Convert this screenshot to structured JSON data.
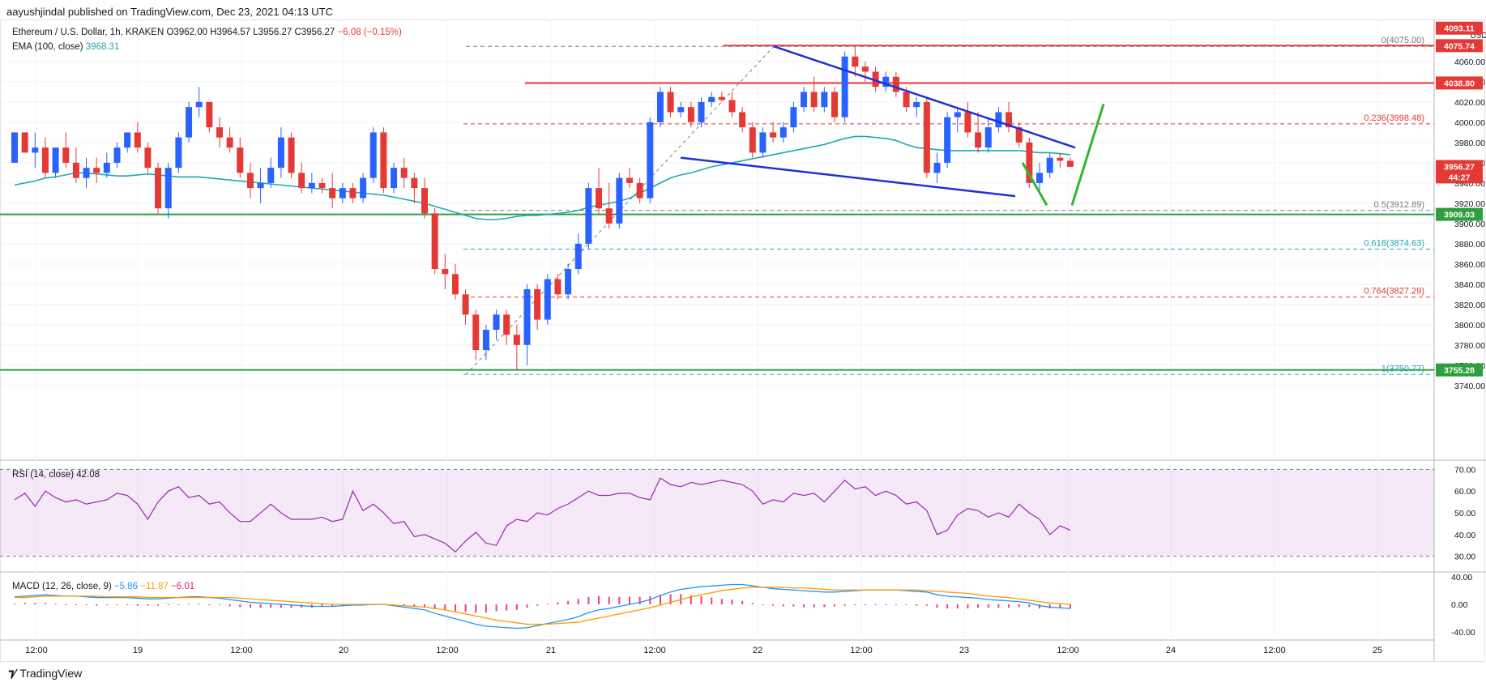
{
  "publisher_line": "aayushjindal published on TradingView.com, Dec 23, 2021 04:13 UTC",
  "symbol": {
    "name": "Ethereum / U.S. Dollar, 1h, KRAKEN",
    "open": "O3962.00",
    "high": "H3964.57",
    "low": "L3956.27",
    "close": "C3956.27",
    "change": "−6.08 (−0.15%)"
  },
  "ema_label": "EMA (100, close)",
  "ema_value": "3968.31",
  "rsi_label": "RSI (14, close)",
  "rsi_value": "42.08",
  "macd_label": "MACD (12, 26, close, 9)",
  "macd_values": [
    "−5.86",
    "−11.87",
    "−6.01"
  ],
  "currency": "USD",
  "footer_brand": "TradingView",
  "colors": {
    "up": "#2962ff",
    "down": "#e53935",
    "ema": "#1fa8b3",
    "rsi": "#9c27b0",
    "macd": "#2196f3",
    "signal": "#ff9800",
    "hist": "#e91e63",
    "support": "#2e9e3e",
    "resistance": "#e53935",
    "trend": "#2130d6",
    "arrow": "#2eb82e"
  },
  "chart_data": {
    "type": "candlestick",
    "price_axis": {
      "min": 3735,
      "max": 4100,
      "ticks": [
        4060,
        4040,
        4020,
        4000,
        3980,
        3960,
        3940,
        3920,
        3900,
        3880,
        3860,
        3840,
        3820,
        3800,
        3780,
        3760,
        3740
      ]
    },
    "time_axis_labels": [
      "12:00",
      "19",
      "12:00",
      "20",
      "12:00",
      "21",
      "12:00",
      "22",
      "12:00",
      "23",
      "12:00",
      "24",
      "12:00",
      "25"
    ],
    "price_tags": [
      {
        "value": "4093.11",
        "color": "#e53935",
        "price": 4093
      },
      {
        "value": "4075.74",
        "color": "#e53935",
        "price": 4075.7
      },
      {
        "value": "4038.80",
        "color": "#e53935",
        "price": 4038.8
      },
      {
        "value": "3956.27",
        "color": "#e53935",
        "price": 3956.3
      },
      {
        "value": "44:27",
        "color": "#e53935",
        "price": 3946
      },
      {
        "value": "3909.03",
        "color": "#2e9e3e",
        "price": 3909
      },
      {
        "value": "3755.28",
        "color": "#2e9e3e",
        "price": 3755.3
      }
    ],
    "fib_levels": [
      {
        "label": "0(4075.00)",
        "price": 4075.0,
        "color": "#787b86",
        "dash": true
      },
      {
        "label": "0.236(3998.48)",
        "price": 3998.48,
        "color": "#e53935",
        "dash": true
      },
      {
        "label": "0.5(3912.89)",
        "price": 3912.89,
        "color": "#787b86",
        "dash": true
      },
      {
        "label": "0.618(3874.63)",
        "price": 3874.63,
        "color": "#1fa8b3",
        "dash": true
      },
      {
        "label": "0.764(3827.29)",
        "price": 3827.29,
        "color": "#e53935",
        "dash": true
      },
      {
        "label": "1(3750.77)",
        "price": 3750.77,
        "color": "#1fa8b3",
        "dash": true
      }
    ],
    "horizontal_lines": [
      {
        "name": "resistance-top",
        "price": 4075.74,
        "color": "#e53935"
      },
      {
        "name": "resistance-4038",
        "price": 4038.8,
        "color": "#e53935"
      },
      {
        "name": "support-3909",
        "price": 3909.03,
        "color": "#2e9e3e"
      },
      {
        "name": "support-3755",
        "price": 3755.28,
        "color": "#2e9e3e"
      }
    ],
    "candles": [
      [
        3960,
        3990,
        3960,
        3990
      ],
      [
        3990,
        3990,
        3970,
        3970
      ],
      [
        3970,
        3990,
        3955,
        3975
      ],
      [
        3975,
        3985,
        3945,
        3950
      ],
      [
        3950,
        3975,
        3945,
        3975
      ],
      [
        3975,
        3990,
        3955,
        3960
      ],
      [
        3960,
        3975,
        3940,
        3945
      ],
      [
        3945,
        3965,
        3935,
        3955
      ],
      [
        3955,
        3965,
        3940,
        3950
      ],
      [
        3950,
        3970,
        3945,
        3960
      ],
      [
        3960,
        3980,
        3955,
        3975
      ],
      [
        3975,
        3990,
        3970,
        3990
      ],
      [
        3990,
        4000,
        3970,
        3975
      ],
      [
        3975,
        3980,
        3950,
        3955
      ],
      [
        3955,
        3960,
        3910,
        3915
      ],
      [
        3915,
        3960,
        3905,
        3955
      ],
      [
        3955,
        3990,
        3950,
        3985
      ],
      [
        3985,
        4020,
        3980,
        4015
      ],
      [
        4015,
        4035,
        4005,
        4020
      ],
      [
        4020,
        4020,
        3990,
        3995
      ],
      [
        3995,
        4005,
        3975,
        3985
      ],
      [
        3985,
        3995,
        3970,
        3975
      ],
      [
        3975,
        3985,
        3945,
        3950
      ],
      [
        3950,
        3960,
        3925,
        3935
      ],
      [
        3935,
        3955,
        3920,
        3940
      ],
      [
        3940,
        3965,
        3935,
        3955
      ],
      [
        3955,
        3995,
        3945,
        3985
      ],
      [
        3985,
        3990,
        3945,
        3950
      ],
      [
        3950,
        3960,
        3930,
        3935
      ],
      [
        3935,
        3950,
        3930,
        3940
      ],
      [
        3940,
        3945,
        3930,
        3935
      ],
      [
        3935,
        3950,
        3915,
        3925
      ],
      [
        3925,
        3940,
        3920,
        3935
      ],
      [
        3935,
        3940,
        3920,
        3925
      ],
      [
        3925,
        3950,
        3920,
        3945
      ],
      [
        3945,
        3995,
        3940,
        3990
      ],
      [
        3990,
        3995,
        3930,
        3935
      ],
      [
        3935,
        3960,
        3930,
        3955
      ],
      [
        3955,
        3965,
        3935,
        3945
      ],
      [
        3945,
        3950,
        3920,
        3935
      ],
      [
        3935,
        3945,
        3905,
        3910
      ],
      [
        3910,
        3915,
        3850,
        3855
      ],
      [
        3855,
        3870,
        3835,
        3850
      ],
      [
        3850,
        3860,
        3825,
        3830
      ],
      [
        3830,
        3835,
        3800,
        3810
      ],
      [
        3810,
        3815,
        3765,
        3775
      ],
      [
        3775,
        3800,
        3765,
        3795
      ],
      [
        3795,
        3815,
        3785,
        3810
      ],
      [
        3810,
        3815,
        3780,
        3790
      ],
      [
        3790,
        3800,
        3755,
        3780
      ],
      [
        3780,
        3840,
        3760,
        3835
      ],
      [
        3835,
        3840,
        3795,
        3805
      ],
      [
        3805,
        3850,
        3800,
        3845
      ],
      [
        3845,
        3850,
        3825,
        3830
      ],
      [
        3830,
        3860,
        3825,
        3855
      ],
      [
        3855,
        3890,
        3850,
        3880
      ],
      [
        3880,
        3940,
        3875,
        3935
      ],
      [
        3935,
        3955,
        3910,
        3915
      ],
      [
        3915,
        3940,
        3895,
        3900
      ],
      [
        3900,
        3950,
        3895,
        3945
      ],
      [
        3945,
        3955,
        3935,
        3940
      ],
      [
        3940,
        3945,
        3920,
        3925
      ],
      [
        3925,
        4005,
        3920,
        4000
      ],
      [
        4000,
        4035,
        3995,
        4030
      ],
      [
        4030,
        4035,
        4005,
        4010
      ],
      [
        4010,
        4020,
        4005,
        4015
      ],
      [
        4015,
        4020,
        3995,
        4000
      ],
      [
        4000,
        4025,
        3995,
        4020
      ],
      [
        4020,
        4030,
        4015,
        4025
      ],
      [
        4025,
        4030,
        4020,
        4022
      ],
      [
        4022,
        4030,
        4005,
        4010
      ],
      [
        4010,
        4015,
        3990,
        3995
      ],
      [
        3995,
        4000,
        3965,
        3970
      ],
      [
        3970,
        3995,
        3965,
        3990
      ],
      [
        3990,
        4000,
        3980,
        3985
      ],
      [
        3985,
        4000,
        3980,
        3995
      ],
      [
        3995,
        4020,
        3990,
        4015
      ],
      [
        4015,
        4035,
        4010,
        4030
      ],
      [
        4030,
        4045,
        4010,
        4015
      ],
      [
        4015,
        4035,
        4010,
        4030
      ],
      [
        4030,
        4035,
        4000,
        4005
      ],
      [
        4005,
        4070,
        4000,
        4065
      ],
      [
        4065,
        4075,
        4045,
        4055
      ],
      [
        4055,
        4060,
        4040,
        4050
      ],
      [
        4050,
        4055,
        4030,
        4035
      ],
      [
        4035,
        4050,
        4030,
        4045
      ],
      [
        4045,
        4050,
        4025,
        4030
      ],
      [
        4030,
        4035,
        4010,
        4015
      ],
      [
        4015,
        4025,
        4005,
        4020
      ],
      [
        4020,
        4025,
        3945,
        3950
      ],
      [
        3950,
        3970,
        3940,
        3960
      ],
      [
        3960,
        4010,
        3955,
        4005
      ],
      [
        4005,
        4015,
        3990,
        4010
      ],
      [
        4010,
        4020,
        3985,
        3990
      ],
      [
        3990,
        4010,
        3970,
        3975
      ],
      [
        3975,
        4005,
        3970,
        3995
      ],
      [
        3995,
        4015,
        3990,
        4010
      ],
      [
        4010,
        4020,
        3990,
        3995
      ],
      [
        3995,
        4000,
        3975,
        3980
      ],
      [
        3980,
        3985,
        3935,
        3940
      ],
      [
        3940,
        3960,
        3930,
        3950
      ],
      [
        3950,
        3970,
        3945,
        3965
      ],
      [
        3965,
        3970,
        3955,
        3962
      ],
      [
        3962,
        3965,
        3956,
        3956
      ]
    ],
    "ema100": [
      3938,
      3940,
      3942,
      3945,
      3946,
      3948,
      3950,
      3950,
      3949,
      3948,
      3947,
      3947,
      3948,
      3949,
      3948,
      3947,
      3946,
      3946,
      3946,
      3945,
      3944,
      3943,
      3942,
      3941,
      3940,
      3939,
      3938,
      3937,
      3936,
      3935,
      3934,
      3933,
      3932,
      3931,
      3930,
      3929,
      3928,
      3926,
      3924,
      3922,
      3920,
      3917,
      3914,
      3911,
      3908,
      3905,
      3904,
      3904,
      3905,
      3907,
      3908,
      3908,
      3909,
      3910,
      3911,
      3913,
      3916,
      3918,
      3920,
      3922,
      3925,
      3930,
      3935,
      3940,
      3945,
      3948,
      3950,
      3953,
      3956,
      3958,
      3960,
      3962,
      3964,
      3966,
      3968,
      3970,
      3972,
      3974,
      3976,
      3978,
      3981,
      3984,
      3986,
      3986,
      3985,
      3984,
      3982,
      3978,
      3975,
      3974,
      3973,
      3972,
      3972,
      3972,
      3972,
      3972,
      3972,
      3972,
      3972,
      3971,
      3970,
      3970,
      3969,
      3968
    ],
    "rsi": {
      "min": 25,
      "max": 72,
      "levels": [
        70,
        60,
        50,
        40,
        30
      ],
      "band": [
        30,
        70
      ],
      "values": [
        56,
        59,
        53,
        60,
        57,
        55,
        56,
        54,
        55,
        56,
        59,
        58,
        54,
        47,
        55,
        60,
        62,
        57,
        58,
        54,
        55,
        50,
        46,
        46,
        50,
        54,
        50,
        47,
        47,
        47,
        48,
        46,
        47,
        60,
        51,
        54,
        50,
        45,
        46,
        39,
        40,
        38,
        36,
        32,
        37,
        41,
        36,
        35,
        44,
        47,
        46,
        50,
        49,
        52,
        54,
        57,
        60,
        58,
        58,
        59,
        59,
        57,
        56,
        66,
        63,
        62,
        64,
        63,
        64,
        65,
        64,
        63,
        60,
        54,
        56,
        55,
        59,
        58,
        59,
        55,
        60,
        65,
        61,
        62,
        58,
        60,
        58,
        54,
        55,
        51,
        40,
        42,
        49,
        52,
        51,
        48,
        50,
        48,
        54,
        50,
        47,
        40,
        44,
        42
      ]
    },
    "macd": {
      "min": -45,
      "max": 45,
      "levels": [
        40.0,
        0.0,
        -40.0
      ],
      "macd": [
        11,
        12,
        13,
        14,
        13,
        12,
        12,
        11,
        10,
        10,
        10,
        10,
        9,
        8,
        8,
        9,
        10,
        11,
        11,
        10,
        9,
        7,
        5,
        3,
        2,
        1,
        0,
        -1,
        -2,
        -3,
        -3,
        -3,
        -2,
        -1,
        -1,
        0,
        0,
        -2,
        -4,
        -6,
        -8,
        -13,
        -17,
        -21,
        -25,
        -29,
        -32,
        -33,
        -34,
        -35,
        -34,
        -31,
        -28,
        -25,
        -22,
        -18,
        -12,
        -8,
        -6,
        -3,
        0,
        3,
        7,
        13,
        18,
        22,
        24,
        26,
        27,
        28,
        29,
        29,
        27,
        25,
        23,
        22,
        21,
        20,
        19,
        18,
        18,
        19,
        20,
        21,
        21,
        21,
        21,
        20,
        19,
        18,
        14,
        12,
        11,
        10,
        9,
        7,
        6,
        5,
        4,
        2,
        -2,
        -4,
        -5,
        -6
      ],
      "signal": [
        10,
        10,
        11,
        12,
        12,
        12,
        12,
        12,
        12,
        11,
        11,
        11,
        11,
        10,
        10,
        10,
        10,
        10,
        10,
        10,
        10,
        10,
        9,
        8,
        7,
        6,
        5,
        4,
        3,
        2,
        1,
        0,
        0,
        0,
        0,
        0,
        0,
        -1,
        -2,
        -3,
        -4,
        -6,
        -8,
        -11,
        -14,
        -17,
        -20,
        -23,
        -25,
        -27,
        -29,
        -29,
        -29,
        -28,
        -27,
        -26,
        -23,
        -20,
        -17,
        -14,
        -11,
        -8,
        -5,
        -1,
        3,
        7,
        11,
        14,
        17,
        20,
        22,
        24,
        25,
        25,
        25,
        25,
        24,
        24,
        23,
        22,
        21,
        21,
        21,
        21,
        21,
        21,
        21,
        21,
        21,
        20,
        19,
        18,
        17,
        16,
        14,
        12,
        11,
        10,
        8,
        6,
        4,
        2,
        1,
        0
      ]
    }
  }
}
